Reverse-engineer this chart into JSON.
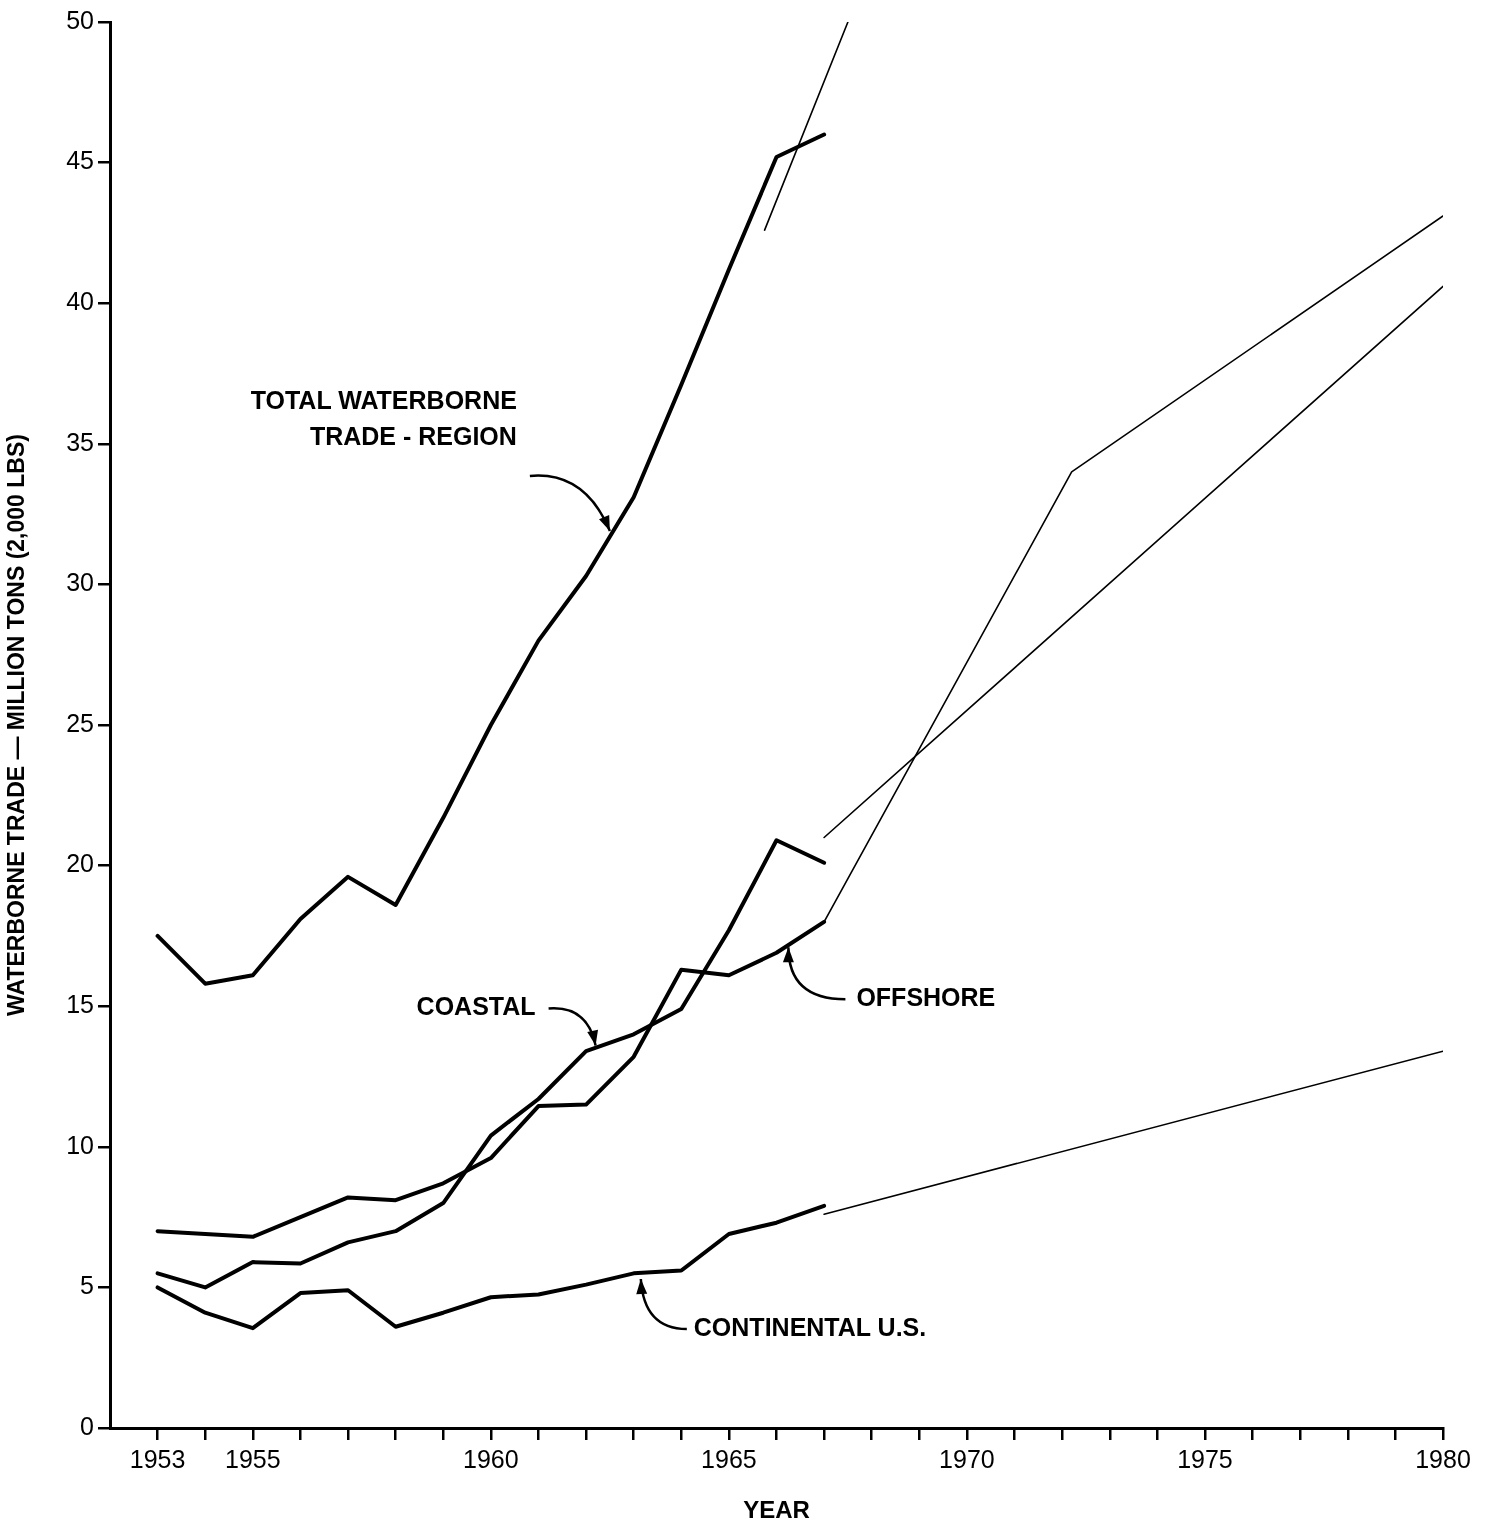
{
  "chart_data": {
    "type": "line",
    "xlabel": "YEAR",
    "ylabel": "WATERBORNE TRADE — MILLION TONS (2,000 LBS)",
    "x": [
      1953,
      1954,
      1955,
      1956,
      1957,
      1958,
      1959,
      1960,
      1961,
      1962,
      1963,
      1964,
      1965,
      1966,
      1967
    ],
    "series": [
      {
        "color": "#000000",
        "values": [
          17.5,
          15.8,
          16.1,
          18.1,
          19.6,
          18.6,
          21.7,
          25.0,
          28.0,
          30.3,
          33.1,
          37.1,
          41.2,
          45.2,
          46.0
        ]
      },
      {
        "color": "#000000",
        "values": [
          5.5,
          5.0,
          5.9,
          5.85,
          6.6,
          7.0,
          8.0,
          10.4,
          11.7,
          13.4,
          14.0,
          14.9,
          17.7,
          20.9,
          20.1
        ]
      },
      {
        "color": "#000000",
        "values": [
          7.0,
          6.9,
          6.8,
          7.5,
          8.2,
          8.1,
          8.7,
          9.6,
          11.45,
          11.5,
          13.2,
          16.3,
          16.1,
          16.9,
          18.0
        ]
      },
      {
        "color": "#000000",
        "values": [
          5.0,
          4.1,
          3.55,
          4.8,
          4.9,
          3.6,
          4.1,
          4.65,
          4.75,
          5.1,
          5.5,
          5.6,
          6.9,
          7.3,
          7.9
        ]
      },
      {
        "color": "#000000",
        "x": [
          1965.75,
          1967.5
        ],
        "values": [
          42.6,
          50
        ]
      },
      {
        "color": "#000000",
        "x": [
          1967,
          1980
        ],
        "values": [
          21.0,
          40.6
        ]
      },
      {
        "color": "#000000",
        "x": [
          1967,
          1972.2,
          1980
        ],
        "values": [
          18.0,
          34.0,
          43.1
        ]
      },
      {
        "color": "#000000",
        "x": [
          1967,
          1980
        ],
        "values": [
          7.6,
          13.4
        ]
      }
    ],
    "xlim": [
      1952,
      1980
    ],
    "xticks": [
      1953,
      {
        "value": 1954,
        "label": null
      },
      1955,
      {
        "value": 1956,
        "label": null
      },
      {
        "value": 1957,
        "label": null
      },
      {
        "value": 1958,
        "label": null
      },
      {
        "value": 1959,
        "label": null
      },
      1960,
      {
        "value": 1961,
        "label": null
      },
      {
        "value": 1962,
        "label": null
      },
      {
        "value": 1963,
        "label": null
      },
      {
        "value": 1964,
        "label": null
      },
      1965,
      {
        "value": 1966,
        "label": null
      },
      {
        "value": 1967,
        "label": null
      },
      {
        "value": 1968,
        "label": null
      },
      {
        "value": 1969,
        "label": null
      },
      1970,
      {
        "value": 1971,
        "label": null
      },
      {
        "value": 1972,
        "label": null
      },
      {
        "value": 1973,
        "label": null
      },
      {
        "value": 1974,
        "label": null
      },
      1975,
      {
        "value": 1976,
        "label": null
      },
      {
        "value": 1977,
        "label": null
      },
      {
        "value": 1978,
        "label": null
      },
      {
        "value": 1979,
        "label": null
      },
      1980
    ],
    "ylim": [
      0,
      50
    ],
    "yticks": [
      0,
      5,
      10,
      15,
      20,
      25,
      30,
      35,
      40,
      45,
      50
    ],
    "line_style": "solid",
    "marker": "none",
    "legend": false,
    "grid": false,
    "annotations": [
      {
        "text": "TOTAL WATERBORNE TRADE - REGION",
        "x": 1962.5,
        "y": 31.9
      },
      {
        "text": "COASTAL",
        "x": 1962.2,
        "y": 13.6
      },
      {
        "text": "OFFSHORE",
        "x": 1966.25,
        "y": 17.1
      },
      {
        "text": "CONTINENTAL U.S.",
        "x": 1963.15,
        "y": 5.3
      }
    ]
  }
}
